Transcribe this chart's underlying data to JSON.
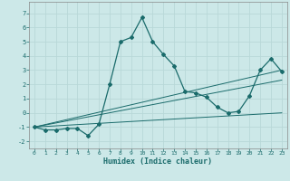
{
  "xlabel": "Humidex (Indice chaleur)",
  "ylabel": "",
  "xlim": [
    -0.5,
    23.5
  ],
  "ylim": [
    -2.5,
    7.8
  ],
  "yticks": [
    -2,
    -1,
    0,
    1,
    2,
    3,
    4,
    5,
    6,
    7
  ],
  "xticks": [
    0,
    1,
    2,
    3,
    4,
    5,
    6,
    7,
    8,
    9,
    10,
    11,
    12,
    13,
    14,
    15,
    16,
    17,
    18,
    19,
    20,
    21,
    22,
    23
  ],
  "bg_color": "#cce8e8",
  "line_color": "#1a6b6b",
  "grid_color": "#b8d8d8",
  "tick_color": "#1a6b6b",
  "lines": [
    {
      "x": [
        0,
        1,
        2,
        3,
        4,
        5,
        6,
        7,
        8,
        9,
        10,
        11,
        12,
        13,
        14,
        15,
        16,
        17,
        18,
        19,
        20,
        21,
        22,
        23
      ],
      "y": [
        -1,
        -1.2,
        -1.2,
        -1.1,
        -1.1,
        -1.6,
        -0.8,
        2.0,
        5.0,
        5.3,
        6.7,
        5.0,
        4.1,
        3.3,
        1.5,
        1.4,
        1.1,
        0.4,
        0.0,
        0.1,
        1.2,
        3.0,
        3.8,
        2.9
      ],
      "style": "main"
    },
    {
      "x": [
        0,
        23
      ],
      "y": [
        -1,
        3.0
      ],
      "style": "ref"
    },
    {
      "x": [
        0,
        23
      ],
      "y": [
        -1,
        2.3
      ],
      "style": "ref"
    },
    {
      "x": [
        0,
        23
      ],
      "y": [
        -1,
        0.0
      ],
      "style": "ref"
    }
  ]
}
